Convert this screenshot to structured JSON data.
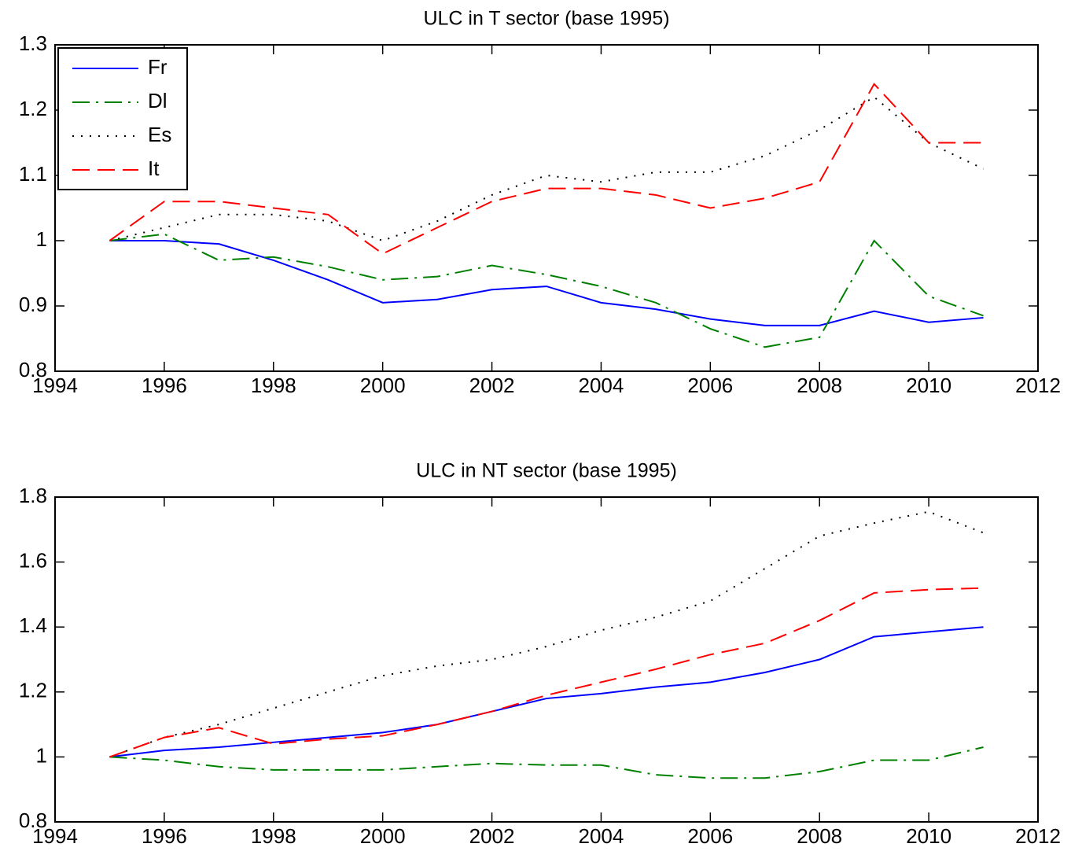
{
  "chart_data": [
    {
      "type": "line",
      "title": "ULC in T sector (base 1995)",
      "x": [
        1995,
        1996,
        1997,
        1998,
        1999,
        2000,
        2001,
        2002,
        2003,
        2004,
        2005,
        2006,
        2007,
        2008,
        2009,
        2010,
        2011
      ],
      "series": [
        {
          "name": "Fr",
          "color": "#0000ff",
          "linestyle": "solid",
          "values": [
            1.0,
            1.0,
            0.995,
            0.97,
            0.94,
            0.905,
            0.91,
            0.925,
            0.93,
            0.905,
            0.895,
            0.88,
            0.87,
            0.87,
            0.892,
            0.875,
            0.882
          ]
        },
        {
          "name": "Dl",
          "color": "#008000",
          "linestyle": "dashdot",
          "values": [
            1.0,
            1.01,
            0.97,
            0.975,
            0.96,
            0.94,
            0.945,
            0.962,
            0.948,
            0.93,
            0.905,
            0.865,
            0.837,
            0.852,
            1.0,
            0.915,
            0.885
          ]
        },
        {
          "name": "Es",
          "color": "#000000",
          "linestyle": "dotted",
          "values": [
            1.0,
            1.02,
            1.04,
            1.04,
            1.03,
            1.0,
            1.03,
            1.07,
            1.1,
            1.09,
            1.105,
            1.105,
            1.13,
            1.17,
            1.22,
            1.15,
            1.11
          ]
        },
        {
          "name": "It",
          "color": "#ff0000",
          "linestyle": "dashed",
          "values": [
            1.0,
            1.06,
            1.06,
            1.05,
            1.04,
            0.98,
            1.02,
            1.06,
            1.08,
            1.08,
            1.07,
            1.05,
            1.065,
            1.09,
            1.24,
            1.15,
            1.15
          ]
        }
      ],
      "xlim": [
        1994,
        2012
      ],
      "xticks": [
        1994,
        1996,
        1998,
        2000,
        2002,
        2004,
        2006,
        2008,
        2010,
        2012
      ],
      "ylim": [
        0.8,
        1.3
      ],
      "yticks": [
        0.8,
        0.9,
        1,
        1.1,
        1.2,
        1.3
      ],
      "legend": "upper left"
    },
    {
      "type": "line",
      "title": "ULC in NT sector (base 1995)",
      "x": [
        1995,
        1996,
        1997,
        1998,
        1999,
        2000,
        2001,
        2002,
        2003,
        2004,
        2005,
        2006,
        2007,
        2008,
        2009,
        2010,
        2011
      ],
      "series": [
        {
          "color": "#0000ff",
          "linestyle": "solid",
          "values": [
            1.0,
            1.02,
            1.03,
            1.045,
            1.06,
            1.075,
            1.1,
            1.14,
            1.18,
            1.195,
            1.215,
            1.23,
            1.26,
            1.3,
            1.37,
            1.385,
            1.4
          ]
        },
        {
          "color": "#008000",
          "linestyle": "dashdot",
          "values": [
            1.0,
            0.99,
            0.97,
            0.96,
            0.96,
            0.96,
            0.97,
            0.98,
            0.975,
            0.975,
            0.945,
            0.935,
            0.935,
            0.955,
            0.99,
            0.99,
            1.03
          ]
        },
        {
          "color": "#000000",
          "linestyle": "dotted",
          "values": [
            1.0,
            1.06,
            1.1,
            1.15,
            1.2,
            1.25,
            1.28,
            1.3,
            1.34,
            1.39,
            1.43,
            1.48,
            1.58,
            1.68,
            1.72,
            1.755,
            1.69
          ]
        },
        {
          "color": "#ff0000",
          "linestyle": "dashed",
          "values": [
            1.0,
            1.06,
            1.09,
            1.04,
            1.055,
            1.065,
            1.1,
            1.14,
            1.19,
            1.23,
            1.27,
            1.315,
            1.35,
            1.42,
            1.505,
            1.515,
            1.52
          ]
        }
      ],
      "xlim": [
        1994,
        2012
      ],
      "xticks": [
        1994,
        1996,
        1998,
        2000,
        2002,
        2004,
        2006,
        2008,
        2010,
        2012
      ],
      "ylim": [
        0.8,
        1.8
      ],
      "yticks": [
        0.8,
        1,
        1.2,
        1.4,
        1.6,
        1.8
      ]
    }
  ]
}
